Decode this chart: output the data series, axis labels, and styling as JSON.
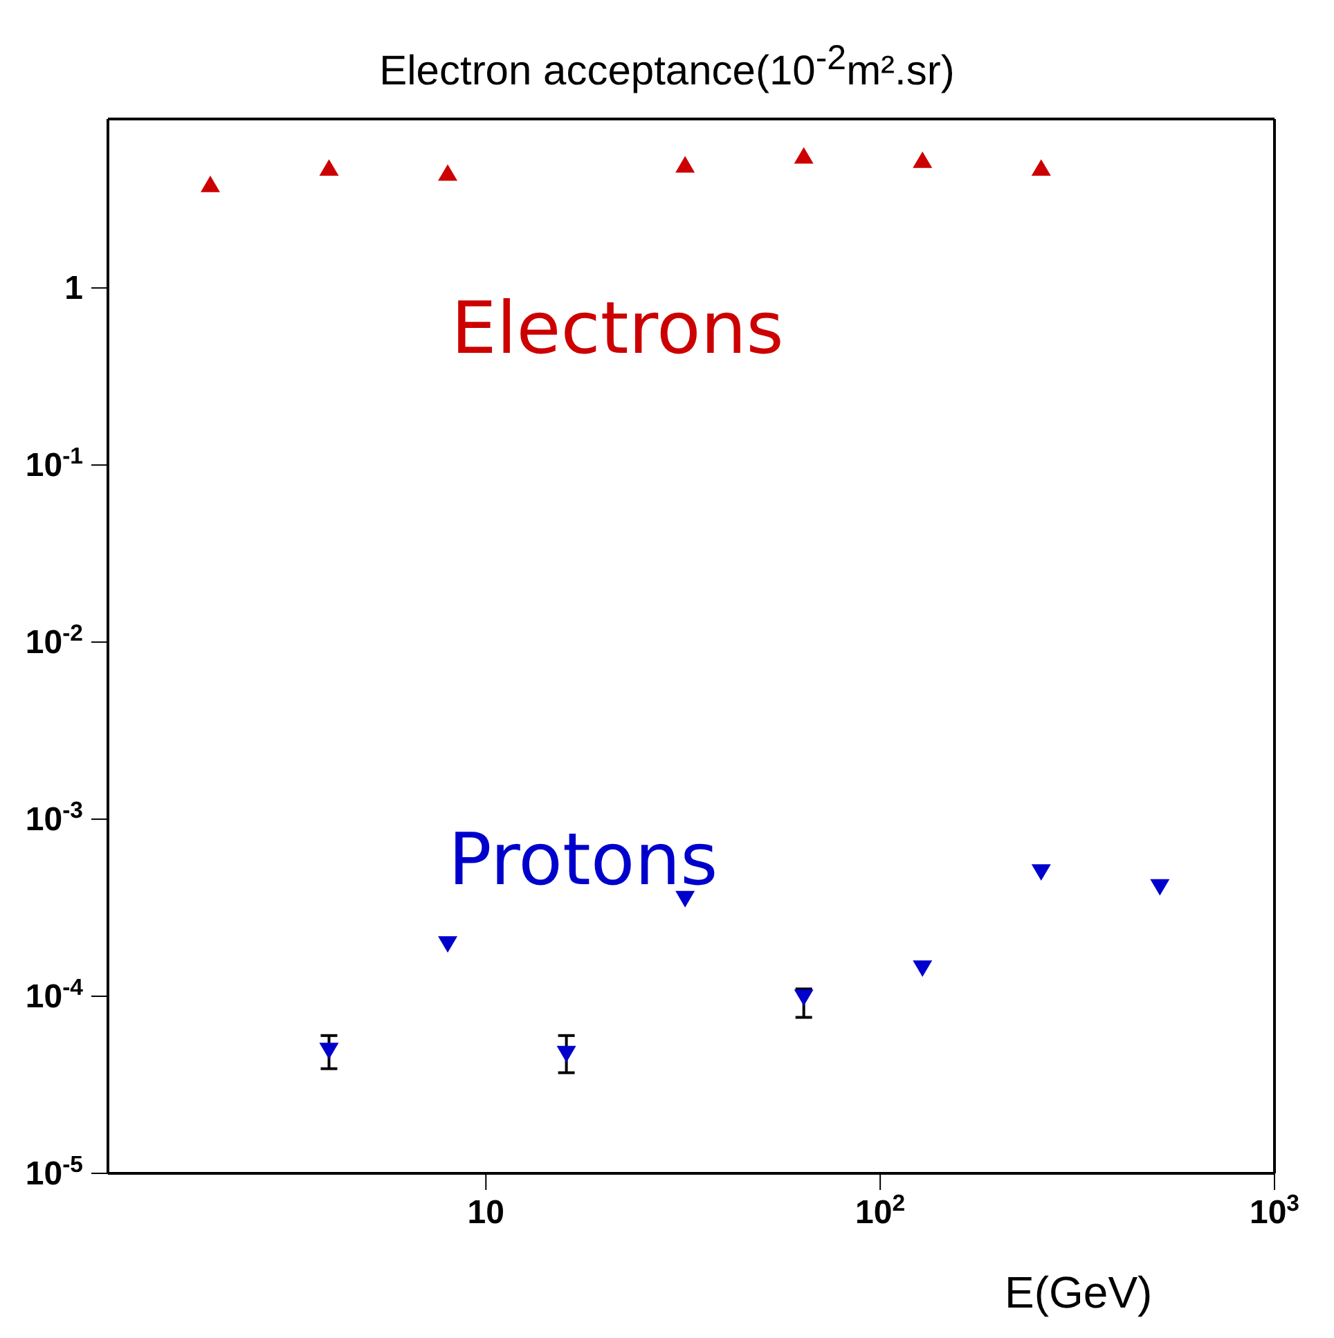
{
  "chart_data": {
    "type": "scatter",
    "title": "Electron acceptance(10$^{-2}$m².sr)",
    "xlabel": "E(GeV)",
    "log": "xy",
    "grid": false,
    "legend": false,
    "xlim": [
      1.1,
      1000
    ],
    "xticks": [
      {
        "value": 10,
        "label": "10"
      },
      {
        "value": 100,
        "label": "10$^{2}$"
      },
      {
        "value": 1000,
        "label": "10$^{3}$"
      }
    ],
    "ylim": [
      1e-05,
      9
    ],
    "yticks": [
      {
        "value": 1e-05,
        "label": "10$^{-5}$"
      },
      {
        "value": 0.0001,
        "label": "10$^{-4}$"
      },
      {
        "value": 0.001,
        "label": "10$^{-3}$"
      },
      {
        "value": 0.01,
        "label": "10$^{-2}$"
      },
      {
        "value": 0.1,
        "label": "10$^{-1}$"
      },
      {
        "value": 1,
        "label": "1"
      }
    ],
    "series": [
      {
        "name": "Electrons",
        "color": "#cc0000",
        "marker": "triangle",
        "x": [
          2,
          4,
          8,
          32,
          64,
          128,
          256
        ],
        "values": [
          3.8,
          4.7,
          4.4,
          4.9,
          5.5,
          5.2,
          4.7
        ]
      },
      {
        "name": "Protons",
        "color": "#0000cc",
        "marker": "triangle-down",
        "x": [
          4,
          8,
          16,
          32,
          64,
          128,
          256,
          512
        ],
        "values": [
          5e-05,
          0.0002,
          4.8e-05,
          0.00036,
          0.0001,
          0.000146,
          0.00051,
          0.00042
        ],
        "errors": [
          [
            3.9e-05,
            6e-05
          ],
          null,
          [
            3.7e-05,
            6e-05
          ],
          null,
          [
            7.6e-05,
            0.00011
          ],
          null,
          null,
          null
        ]
      }
    ]
  }
}
